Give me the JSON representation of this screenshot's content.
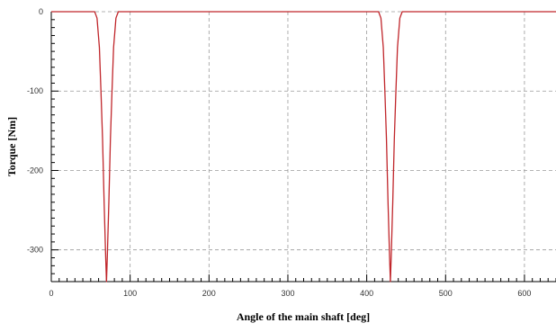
{
  "chart_data": {
    "type": "line",
    "xlabel": "Angle of the main shaft [deg]",
    "ylabel": "Torque [Nm]",
    "xlim": [
      0,
      640
    ],
    "ylim": [
      -340,
      0
    ],
    "grid": true,
    "xticks": [
      0,
      100,
      200,
      300,
      400,
      500,
      600
    ],
    "xtick_labels": [
      "0",
      "100",
      "200",
      "300",
      "400",
      "500",
      "600"
    ],
    "yticks": [
      0,
      -100,
      -200,
      -300
    ],
    "ytick_labels": [
      "0",
      "-100",
      "-200",
      "-300"
    ],
    "series": [
      {
        "color": "#c0262b",
        "x": [
          0,
          55,
          58,
          61,
          63,
          65,
          67,
          69,
          70,
          71,
          73,
          75,
          77,
          79,
          82,
          85,
          415,
          418,
          421,
          423,
          425,
          427,
          429,
          430,
          431,
          433,
          435,
          437,
          439,
          442,
          445,
          640
        ],
        "y": [
          0,
          0,
          -8,
          -45,
          -100,
          -160,
          -240,
          -310,
          -340,
          -310,
          -240,
          -160,
          -100,
          -45,
          -8,
          0,
          0,
          -8,
          -45,
          -100,
          -160,
          -240,
          -310,
          -340,
          -310,
          -240,
          -160,
          -100,
          -45,
          -8,
          0,
          0
        ]
      }
    ]
  }
}
